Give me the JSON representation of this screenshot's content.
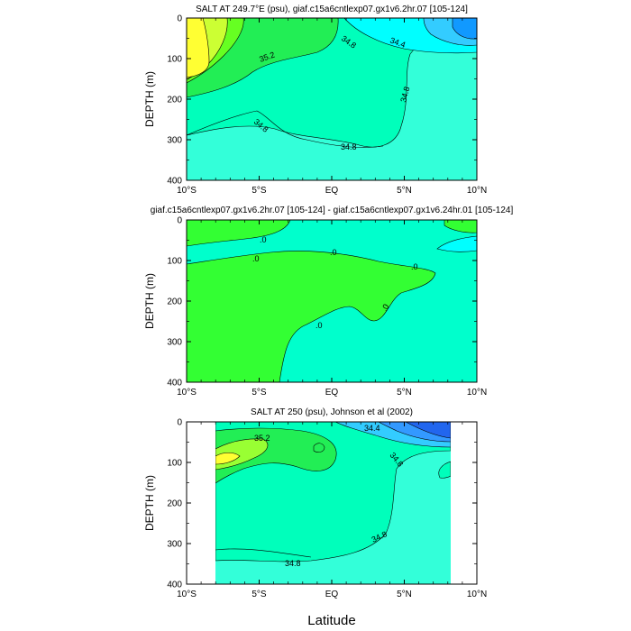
{
  "figure": {
    "xlabel": "Latitude"
  },
  "chart_data": [
    {
      "type": "contour",
      "title": "SALT AT 249.7°E (psu), giaf.c15a6cntlexp07.gx1v6.2hr.07 [105-124]",
      "ylabel": "DEPTH (m)",
      "xlim": [
        -10,
        10
      ],
      "ylim": [
        400,
        0
      ],
      "x_ticks": [
        "10°S",
        "5°S",
        "EQ",
        "5°N",
        "10°N"
      ],
      "y_ticks": [
        "0",
        "100",
        "200",
        "300",
        "400"
      ],
      "contour_labels": [
        "35.2",
        "34.8",
        "34.8",
        "34.8",
        "34.8",
        "34.4"
      ],
      "colors": {
        "background": "#33ffd9",
        "mid": "#00ffbb",
        "high1": "#22ee55",
        "high2": "#66ff22",
        "high3": "#ccff33",
        "peak": "#ffff33",
        "low1": "#00ffff",
        "low2": "#33ccff",
        "low3": "#1199ff"
      }
    },
    {
      "type": "contour",
      "title": "giaf.c15a6cntlexp07.gx1v6.2hr.07 [105-124] - giaf.c15a6cntlexp07.gx1v6.24hr.01 [105-124]",
      "ylabel": "DEPTH (m)",
      "xlim": [
        -10,
        10
      ],
      "ylim": [
        400,
        0
      ],
      "x_ticks": [
        "10°S",
        "5°S",
        "EQ",
        "5°N",
        "10°N"
      ],
      "y_ticks": [
        "0",
        "100",
        "200",
        "300",
        "400"
      ],
      "contour_labels": [
        ".0",
        ".0",
        ".0",
        ".0",
        ".0",
        ".0"
      ],
      "colors": {
        "background": "#00ffcc",
        "positive": "#33ff33",
        "negative": "#00ffff"
      }
    },
    {
      "type": "contour",
      "title": "SALT AT 250 (psu), Johnson et al (2002)",
      "ylabel": "DEPTH (m)",
      "xlim": [
        -10,
        10
      ],
      "ylim": [
        400,
        0
      ],
      "data_xlim": [
        -8,
        8.1
      ],
      "x_ticks": [
        "10°S",
        "5°S",
        "EQ",
        "5°N",
        "10°N"
      ],
      "y_ticks": [
        "0",
        "100",
        "200",
        "300",
        "400"
      ],
      "contour_labels": [
        "35.2",
        "34.4",
        "34.8",
        "34.8",
        "34.8"
      ],
      "colors": {
        "background": "#33ffd9",
        "mid": "#00ffbb",
        "high1": "#22ee55",
        "high2": "#99ff33",
        "peak": "#ffff33",
        "low1": "#33ccff",
        "low2": "#3399ff",
        "low3": "#2266ee"
      }
    }
  ]
}
